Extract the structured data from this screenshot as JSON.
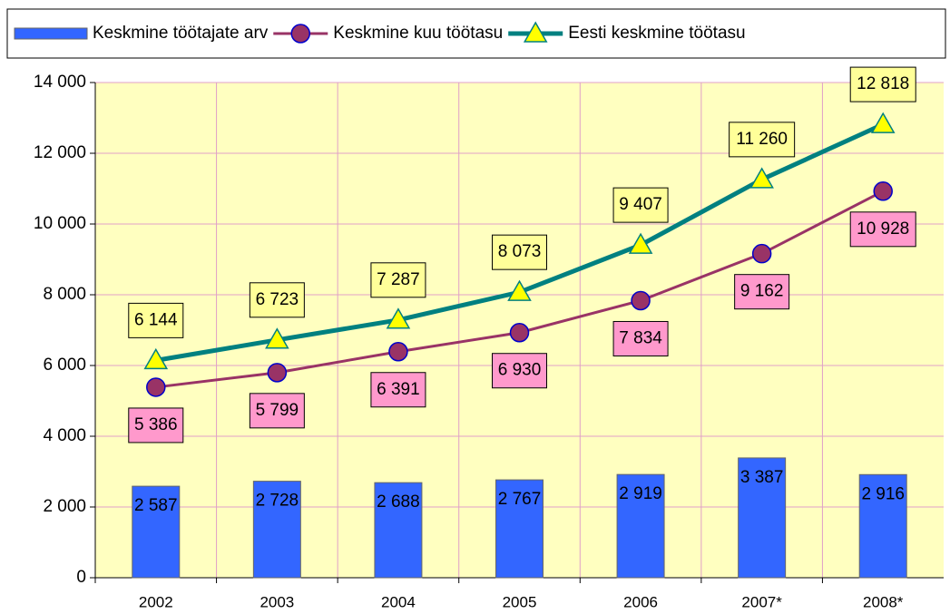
{
  "chart_data": {
    "type": "combo",
    "categories": [
      "2002",
      "2003",
      "2004",
      "2005",
      "2006",
      "2007*",
      "2008*"
    ],
    "series": [
      {
        "name": "Keskmine töötajate arv",
        "type": "bar",
        "color": "#3366ff",
        "values": [
          2587,
          2728,
          2688,
          2767,
          2919,
          3387,
          2916
        ],
        "value_labels": [
          "2 587",
          "2 728",
          "2 688",
          "2 767",
          "2 919",
          "3 387",
          "2 916"
        ]
      },
      {
        "name": "Keskmine kuu töötasu",
        "type": "line",
        "marker": "circle",
        "color": "#993366",
        "marker_color": "#993366",
        "label_color": "#ff99cc",
        "values": [
          5386,
          5799,
          6391,
          6930,
          7834,
          9162,
          10928
        ],
        "value_labels": [
          "5 386",
          "5 799",
          "6 391",
          "6 930",
          "7 834",
          "9 162",
          "10 928"
        ]
      },
      {
        "name": "Eesti keskmine töötasu",
        "type": "line",
        "marker": "triangle",
        "color": "#008080",
        "marker_color": "#ffff00",
        "label_color": "#ffff99",
        "values": [
          6144,
          6723,
          7287,
          8073,
          9407,
          11260,
          12818
        ],
        "value_labels": [
          "6 144",
          "6 723",
          "7 287",
          "8 073",
          "9 407",
          "11 260",
          "12 818"
        ]
      }
    ],
    "ylim": [
      0,
      14000
    ],
    "yticks": [
      0,
      {
        "value": 2000,
        "label": "2 000"
      },
      {
        "value": 4000,
        "label": "4 000"
      },
      {
        "value": 6000,
        "label": "6 000"
      },
      {
        "value": 8000,
        "label": "8 000"
      },
      {
        "value": 10000,
        "label": "10 000"
      },
      {
        "value": 12000,
        "label": "12 000"
      },
      {
        "value": 14000,
        "label": "14 000"
      }
    ],
    "grid": true,
    "legend": "top",
    "plot_background": "#ffffc0"
  }
}
